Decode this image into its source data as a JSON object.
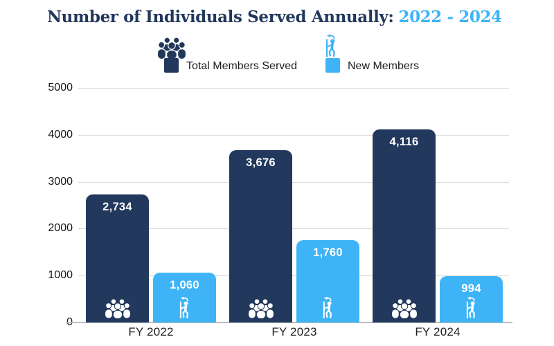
{
  "title": {
    "main": "Number of Individuals Served Annually:",
    "highlight": "2022 - 2024"
  },
  "legend": {
    "items": [
      {
        "label": "Total Members Served",
        "color": "#22385c",
        "icon": "people-group-icon"
      },
      {
        "label": "New Members",
        "color": "#3eb4f7",
        "icon": "hiker-icon"
      }
    ]
  },
  "chart_data": {
    "type": "bar",
    "title": "Number of Individuals Served Annually: 2022 - 2024",
    "categories": [
      "FY 2022",
      "FY 2023",
      "FY 2024"
    ],
    "series": [
      {
        "name": "Total Members Served",
        "color": "#22385c",
        "icon": "people-group-icon",
        "values": [
          2734,
          3676,
          4116
        ],
        "labels": [
          "2,734",
          "3,676",
          "4,116"
        ]
      },
      {
        "name": "New Members",
        "color": "#3eb4f7",
        "icon": "hiker-icon",
        "values": [
          1060,
          1760,
          994
        ],
        "labels": [
          "1,060",
          "1,760",
          "994"
        ]
      }
    ],
    "xlabel": "",
    "ylabel": "",
    "ylim": [
      0,
      5000
    ],
    "yticks": [
      0,
      1000,
      2000,
      3000,
      4000,
      5000
    ],
    "grid": true,
    "legend_position": "top"
  },
  "colors": {
    "navy": "#22385c",
    "light_blue": "#3eb4f7",
    "gridline": "#d9d9d9",
    "axis": "#b9bcc0",
    "text": "#1a1a1a",
    "background": "#ffffff"
  }
}
